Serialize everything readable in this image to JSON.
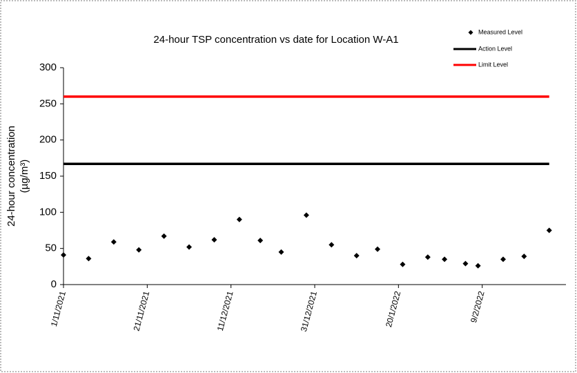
{
  "chart_data": {
    "type": "scatter",
    "title": "24-hour TSP concentration vs date for Location W-A1",
    "ylabel": [
      "24-hour concentration",
      "(µg/m³)"
    ],
    "x": [
      "1/11/2021",
      "7/11/2021",
      "13/11/2021",
      "19/11/2021",
      "25/11/2021",
      "1/12/2021",
      "7/12/2021",
      "13/12/2021",
      "18/12/2021",
      "23/12/2021",
      "29/12/2021",
      "4/1/2022",
      "10/1/2022",
      "15/1/2022",
      "21/1/2022",
      "27/1/2022",
      "31/1/2022",
      "5/2/2022",
      "8/2/2022",
      "14/2/2022",
      "19/2/2022",
      "25/2/2022"
    ],
    "series": [
      {
        "name": "Measured Level",
        "color": "#000000",
        "values": [
          41,
          36,
          59,
          48,
          67,
          52,
          62,
          90,
          61,
          45,
          96,
          55,
          40,
          49,
          28,
          38,
          35,
          29,
          26,
          35,
          39,
          75
        ]
      },
      {
        "name": "Action Level",
        "color": "#000000",
        "level": 167
      },
      {
        "name": "Limit Level",
        "color": "#ff0000",
        "level": 260
      }
    ],
    "xlim": [
      "1/11/2021",
      "1/3/2022"
    ],
    "xticks": [
      "1/11/2021",
      "21/11/2021",
      "11/12/2021",
      "31/12/2021",
      "20/1/2022",
      "9/2/2022"
    ],
    "ylim": [
      0,
      300
    ],
    "yticks": [
      0,
      50,
      100,
      150,
      200,
      250,
      300
    ],
    "grid": false,
    "legend": "top-right"
  }
}
